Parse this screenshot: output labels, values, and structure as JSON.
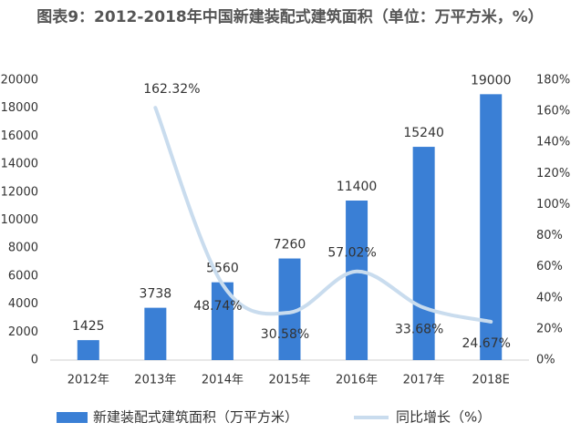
{
  "chart_data": {
    "type": "bar-line",
    "title": "图表9：2012-2018年中国新建装配式建筑面积（单位：万平方米，%）",
    "categories": [
      "2012年",
      "2013年",
      "2014年",
      "2015年",
      "2016年",
      "2017年",
      "2018E"
    ],
    "series": [
      {
        "name": "新建装配式建筑面积（万平方米）",
        "color": "#3a7fd5",
        "type": "bar",
        "values": [
          1425,
          3738,
          5560,
          7260,
          11400,
          15240,
          19000
        ]
      },
      {
        "name": "同比增长（%）",
        "color": "#c9dcee",
        "type": "line",
        "axis": "y2",
        "values": [
          null,
          162.32,
          48.74,
          30.58,
          57.02,
          33.68,
          24.67
        ],
        "value_labels": [
          null,
          "162.32%",
          "48.74%",
          "30.58%",
          "57.02%",
          "33.68%",
          "24.67%"
        ]
      }
    ],
    "ylim": [
      0,
      20000
    ],
    "yticks": [
      0,
      2000,
      4000,
      6000,
      8000,
      10000,
      12000,
      14000,
      16000,
      18000,
      20000
    ],
    "y2lim": [
      0,
      180
    ],
    "y2ticks": [
      {
        "value": 0,
        "label": "0%"
      },
      {
        "value": 20,
        "label": "20%"
      },
      {
        "value": 40,
        "label": "40%"
      },
      {
        "value": 60,
        "label": "60%"
      },
      {
        "value": 80,
        "label": "80%"
      },
      {
        "value": 100,
        "label": "100%"
      },
      {
        "value": 120,
        "label": "120%"
      },
      {
        "value": 140,
        "label": "140%"
      },
      {
        "value": 160,
        "label": "160%"
      },
      {
        "value": 180,
        "label": "180%"
      }
    ],
    "legend": "bottom"
  }
}
